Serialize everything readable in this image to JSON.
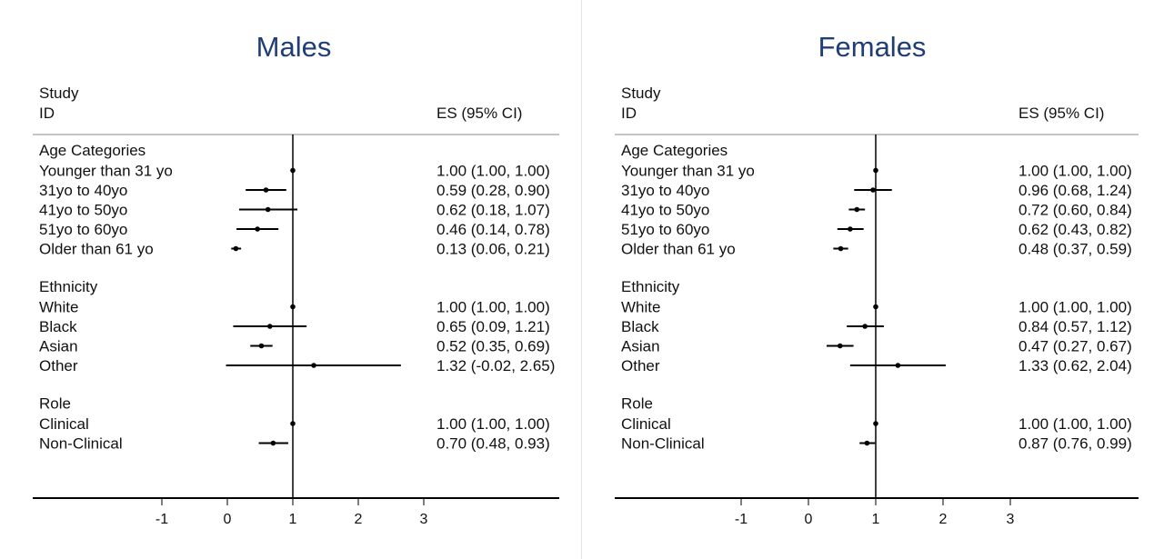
{
  "chart_data": [
    {
      "type": "forest",
      "title": "Males",
      "column_headers": {
        "study": "Study",
        "id": "ID",
        "es": "ES (95% CI)"
      },
      "xlim": [
        -2,
        4
      ],
      "xticks": [
        "-1",
        "0",
        "1",
        "2",
        "3"
      ],
      "reference_line": 1,
      "groups": [
        {
          "name": "Age Categories",
          "rows": [
            {
              "label": "Younger than 31 yo",
              "es": 1.0,
              "lo": 1.0,
              "hi": 1.0,
              "text": "1.00 (1.00, 1.00)"
            },
            {
              "label": "31yo to 40yo",
              "es": 0.59,
              "lo": 0.28,
              "hi": 0.9,
              "text": "0.59 (0.28, 0.90)"
            },
            {
              "label": "41yo to 50yo",
              "es": 0.62,
              "lo": 0.18,
              "hi": 1.07,
              "text": "0.62 (0.18, 1.07)"
            },
            {
              "label": "51yo to 60yo",
              "es": 0.46,
              "lo": 0.14,
              "hi": 0.78,
              "text": "0.46 (0.14, 0.78)"
            },
            {
              "label": "Older than 61 yo",
              "es": 0.13,
              "lo": 0.06,
              "hi": 0.21,
              "text": "0.13 (0.06, 0.21)"
            }
          ]
        },
        {
          "name": "Ethnicity",
          "rows": [
            {
              "label": "White",
              "es": 1.0,
              "lo": 1.0,
              "hi": 1.0,
              "text": "1.00 (1.00, 1.00)"
            },
            {
              "label": "Black",
              "es": 0.65,
              "lo": 0.09,
              "hi": 1.21,
              "text": "0.65 (0.09, 1.21)"
            },
            {
              "label": "Asian",
              "es": 0.52,
              "lo": 0.35,
              "hi": 0.69,
              "text": "0.52 (0.35, 0.69)"
            },
            {
              "label": "Other",
              "es": 1.32,
              "lo": -0.02,
              "hi": 2.65,
              "text": "1.32 (-0.02, 2.65)"
            }
          ]
        },
        {
          "name": "Role",
          "rows": [
            {
              "label": "Clinical",
              "es": 1.0,
              "lo": 1.0,
              "hi": 1.0,
              "text": "1.00 (1.00, 1.00)"
            },
            {
              "label": "Non-Clinical",
              "es": 0.7,
              "lo": 0.48,
              "hi": 0.93,
              "text": "0.70 (0.48, 0.93)"
            }
          ]
        }
      ]
    },
    {
      "type": "forest",
      "title": "Females",
      "column_headers": {
        "study": "Study",
        "id": "ID",
        "es": "ES (95% CI)"
      },
      "xlim": [
        -2,
        4
      ],
      "xticks": [
        "-1",
        "0",
        "1",
        "2",
        "3"
      ],
      "reference_line": 1,
      "groups": [
        {
          "name": "Age Categories",
          "rows": [
            {
              "label": "Younger than 31 yo",
              "es": 1.0,
              "lo": 1.0,
              "hi": 1.0,
              "text": "1.00 (1.00, 1.00)"
            },
            {
              "label": "31yo to 40yo",
              "es": 0.96,
              "lo": 0.68,
              "hi": 1.24,
              "text": "0.96 (0.68, 1.24)"
            },
            {
              "label": "41yo to 50yo",
              "es": 0.72,
              "lo": 0.6,
              "hi": 0.84,
              "text": "0.72 (0.60, 0.84)"
            },
            {
              "label": "51yo to 60yo",
              "es": 0.62,
              "lo": 0.43,
              "hi": 0.82,
              "text": "0.62 (0.43, 0.82)"
            },
            {
              "label": "Older than 61 yo",
              "es": 0.48,
              "lo": 0.37,
              "hi": 0.59,
              "text": "0.48 (0.37, 0.59)"
            }
          ]
        },
        {
          "name": "Ethnicity",
          "rows": [
            {
              "label": "White",
              "es": 1.0,
              "lo": 1.0,
              "hi": 1.0,
              "text": "1.00 (1.00, 1.00)"
            },
            {
              "label": "Black",
              "es": 0.84,
              "lo": 0.57,
              "hi": 1.12,
              "text": "0.84 (0.57, 1.12)"
            },
            {
              "label": "Asian",
              "es": 0.47,
              "lo": 0.27,
              "hi": 0.67,
              "text": "0.47 (0.27, 0.67)"
            },
            {
              "label": "Other",
              "es": 1.33,
              "lo": 0.62,
              "hi": 2.04,
              "text": "1.33 (0.62, 2.04)"
            }
          ]
        },
        {
          "name": "Role",
          "rows": [
            {
              "label": "Clinical",
              "es": 1.0,
              "lo": 1.0,
              "hi": 1.0,
              "text": "1.00 (1.00, 1.00)"
            },
            {
              "label": "Non-Clinical",
              "es": 0.87,
              "lo": 0.76,
              "hi": 0.99,
              "text": "0.87 (0.76, 0.99)"
            }
          ]
        }
      ]
    }
  ]
}
